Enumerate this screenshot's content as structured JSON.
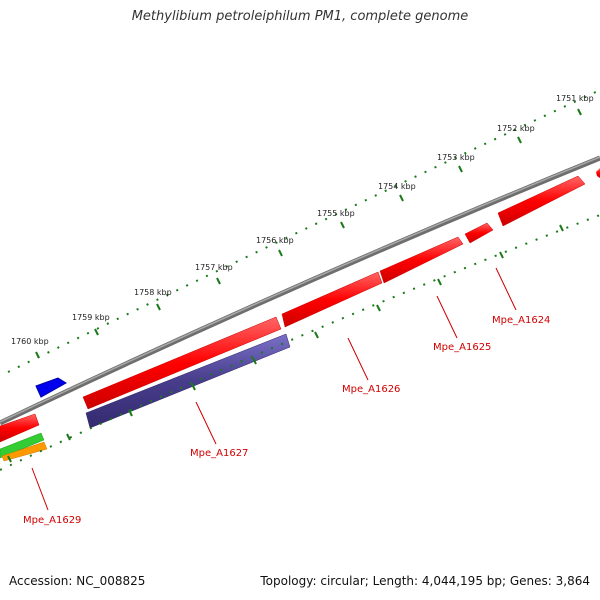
{
  "title": "Methylibium petroleiphilum PM1, complete genome",
  "footer": {
    "accession": "Accession: NC_008825",
    "summary": "Topology: circular; Length: 4,044,195 bp; Genes: 3,864"
  },
  "scale_labels": [
    "1751 kbp",
    "1752 kbp",
    "1753 kbp",
    "1754 kbp",
    "1755 kbp",
    "1756 kbp",
    "1757 kbp",
    "1758 kbp",
    "1759 kbp",
    "1760 kbp"
  ],
  "gene_labels": [
    "Mpe_A1624",
    "Mpe_A1625",
    "Mpe_A1626",
    "Mpe_A1627",
    "Mpe_A1629"
  ],
  "colors": {
    "backbone": "#808080",
    "cds_forward": "#ff0000",
    "cds_reverse": "#ff0000",
    "rna_purple": "#483d8b",
    "blue": "#0000ff",
    "green": "#33cc33",
    "orange": "#ff9900",
    "tick": "#1a7a1a",
    "label": "#d00000"
  }
}
